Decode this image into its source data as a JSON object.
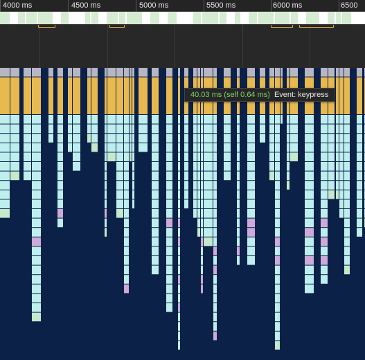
{
  "ruler": {
    "ticks": [
      {
        "label": "4000 ms"
      },
      {
        "label": "4500 ms"
      },
      {
        "label": "5000 ms"
      },
      {
        "label": "5500 ms"
      },
      {
        "label": "6000 ms"
      },
      {
        "label": "6500"
      }
    ]
  },
  "tooltip": {
    "duration": "40.03 ms (self 0.64 ms)",
    "event": "Event: keypress"
  },
  "colors": {
    "ruler_bg": "#242424",
    "frames_bg": "#ffffff",
    "frame_block": "#d5ecd2",
    "overview_bg": "#282828",
    "interaction": "#e4a736",
    "flame_bg": "#0c2148",
    "task": "#b7b7c3",
    "event": "#e8b94f",
    "script": "#bfeeee",
    "style": "#cdaad9",
    "paint": "#c4e9cb",
    "tooltip_duration": "#7fd36b"
  }
}
